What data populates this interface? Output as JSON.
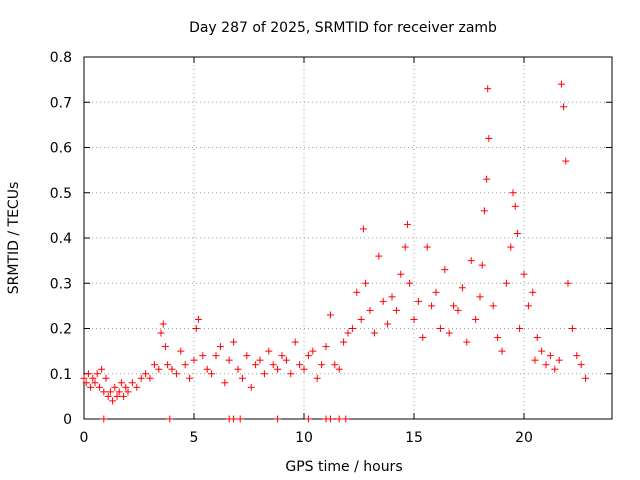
{
  "chart_data": {
    "type": "scatter",
    "title": "Day 287 of 2025, SRMTID for receiver zamb",
    "xlabel": "GPS time / hours",
    "ylabel": "SRMTID / TECUs",
    "xlim": [
      0,
      24
    ],
    "ylim": [
      0,
      0.8
    ],
    "xticks": [
      0,
      5,
      10,
      15,
      20
    ],
    "yticks": [
      0,
      0.1,
      0.2,
      0.3,
      0.4,
      0.5,
      0.6,
      0.7,
      0.8
    ],
    "xtick_labels": [
      "0",
      "5",
      "10",
      "15",
      "20"
    ],
    "ytick_labels": [
      "0",
      "0.1",
      "0.2",
      "0.3",
      "0.4",
      "0.5",
      "0.6",
      "0.7",
      "0.8"
    ],
    "grid": true,
    "marker": "+",
    "color": "#ff0000",
    "series": [
      {
        "name": "SRMTID",
        "x": [
          0.0,
          0.1,
          0.2,
          0.3,
          0.4,
          0.5,
          0.6,
          0.7,
          0.8,
          0.9,
          1.0,
          1.1,
          1.2,
          1.3,
          1.4,
          1.5,
          1.6,
          1.7,
          1.8,
          1.9,
          2.0,
          2.2,
          2.4,
          2.6,
          2.8,
          3.0,
          3.2,
          3.4,
          3.5,
          3.6,
          3.7,
          3.8,
          4.0,
          4.2,
          4.4,
          4.6,
          4.8,
          5.0,
          5.1,
          5.2,
          5.4,
          5.6,
          5.8,
          6.0,
          6.2,
          6.4,
          6.6,
          6.8,
          7.0,
          7.2,
          7.4,
          7.6,
          7.8,
          8.0,
          8.2,
          8.4,
          8.6,
          8.8,
          9.0,
          9.2,
          9.4,
          9.6,
          9.8,
          10.0,
          10.2,
          10.4,
          10.6,
          10.8,
          11.0,
          11.2,
          11.4,
          11.6,
          11.8,
          12.0,
          12.2,
          12.4,
          12.6,
          12.7,
          12.8,
          13.0,
          13.2,
          13.4,
          13.6,
          13.8,
          14.0,
          14.2,
          14.4,
          14.6,
          14.7,
          14.8,
          15.0,
          15.2,
          15.4,
          15.6,
          15.8,
          16.0,
          16.2,
          16.4,
          16.6,
          16.8,
          17.0,
          17.2,
          17.4,
          17.6,
          17.8,
          18.0,
          18.1,
          18.2,
          18.3,
          18.35,
          18.4,
          18.6,
          18.8,
          19.0,
          19.2,
          19.4,
          19.5,
          19.6,
          19.7,
          19.8,
          20.0,
          20.2,
          20.4,
          20.5,
          20.6,
          20.8,
          21.0,
          21.2,
          21.4,
          21.6,
          21.7,
          21.8,
          21.9,
          22.0,
          22.2,
          22.4,
          22.6,
          22.8,
          0.9,
          3.9,
          6.6,
          6.8,
          7.1,
          8.8,
          10.2,
          11.0,
          11.2,
          11.6,
          11.9
        ],
        "y": [
          0.09,
          0.08,
          0.1,
          0.07,
          0.09,
          0.08,
          0.1,
          0.07,
          0.11,
          0.06,
          0.09,
          0.05,
          0.06,
          0.04,
          0.07,
          0.05,
          0.06,
          0.08,
          0.05,
          0.07,
          0.06,
          0.08,
          0.07,
          0.09,
          0.1,
          0.09,
          0.12,
          0.11,
          0.19,
          0.21,
          0.16,
          0.12,
          0.11,
          0.1,
          0.15,
          0.12,
          0.09,
          0.13,
          0.2,
          0.22,
          0.14,
          0.11,
          0.1,
          0.14,
          0.16,
          0.08,
          0.13,
          0.17,
          0.11,
          0.09,
          0.14,
          0.07,
          0.12,
          0.13,
          0.1,
          0.15,
          0.12,
          0.11,
          0.14,
          0.13,
          0.1,
          0.17,
          0.12,
          0.11,
          0.14,
          0.15,
          0.09,
          0.12,
          0.16,
          0.23,
          0.12,
          0.11,
          0.17,
          0.19,
          0.2,
          0.28,
          0.22,
          0.42,
          0.3,
          0.24,
          0.19,
          0.36,
          0.26,
          0.21,
          0.27,
          0.24,
          0.32,
          0.38,
          0.43,
          0.3,
          0.22,
          0.26,
          0.18,
          0.38,
          0.25,
          0.28,
          0.2,
          0.33,
          0.19,
          0.25,
          0.24,
          0.29,
          0.17,
          0.35,
          0.22,
          0.27,
          0.34,
          0.46,
          0.53,
          0.73,
          0.62,
          0.25,
          0.18,
          0.15,
          0.3,
          0.38,
          0.5,
          0.47,
          0.41,
          0.2,
          0.32,
          0.25,
          0.28,
          0.13,
          0.18,
          0.15,
          0.12,
          0.14,
          0.11,
          0.13,
          0.74,
          0.69,
          0.57,
          0.3,
          0.2,
          0.14,
          0.12,
          0.09,
          0,
          0,
          0,
          0,
          0,
          0,
          0,
          0,
          0,
          0,
          0
        ]
      }
    ]
  }
}
